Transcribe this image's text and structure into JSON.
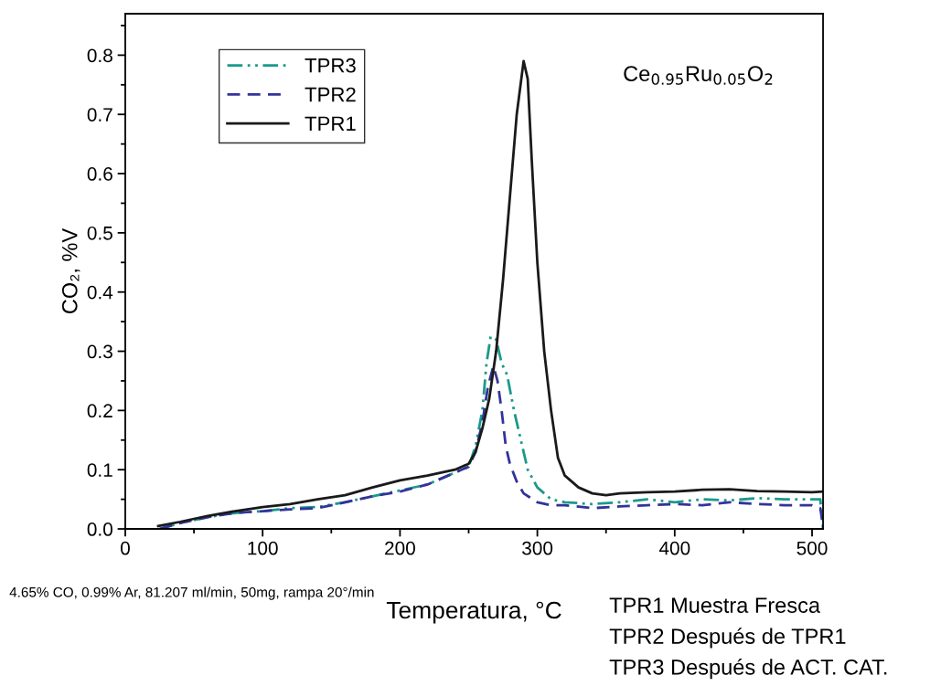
{
  "chart_data": {
    "type": "line",
    "xlabel": "Temperatura, °C",
    "ylabel": "CO₂, %V",
    "annotations": [
      "Ce$_{0.95}$Ru$_{0.05}$O$_{2}$",
      "4.65% CO, 0.99% Ar, 81.207 ml/min, 50mg, rampa 20°/min",
      "TPR1 Muestra Fresca",
      "TPR2 Después de TPR1",
      "TPR3 Después de ACT. CAT."
    ],
    "xlim": [
      0,
      508
    ],
    "xticks": [
      0,
      100,
      200,
      300,
      400,
      500
    ],
    "ylim": [
      0,
      0.87
    ],
    "yticks": [
      {
        "value": 0,
        "label": "0.0"
      },
      0.1,
      0.2,
      0.3,
      0.4,
      0.5,
      0.6,
      0.7,
      0.8
    ],
    "grid": false,
    "legend": "top left",
    "marker": "none",
    "series": [
      {
        "name": "TPR3",
        "color": "#1a9a8a",
        "line_style": "dashdot",
        "x": [
          25,
          40,
          60,
          80,
          100,
          120,
          140,
          160,
          180,
          200,
          220,
          240,
          250,
          255,
          260,
          263,
          266,
          270,
          274,
          278,
          283,
          288,
          293,
          300,
          310,
          320,
          340,
          360,
          380,
          400,
          420,
          440,
          460,
          480,
          500,
          506,
          508
        ],
        "values": [
          0.0,
          0.01,
          0.02,
          0.027,
          0.03,
          0.035,
          0.037,
          0.045,
          0.055,
          0.065,
          0.075,
          0.095,
          0.105,
          0.14,
          0.2,
          0.28,
          0.325,
          0.32,
          0.28,
          0.26,
          0.2,
          0.15,
          0.1,
          0.07,
          0.05,
          0.045,
          0.042,
          0.045,
          0.05,
          0.045,
          0.05,
          0.048,
          0.052,
          0.05,
          0.05,
          0.05,
          0.0
        ]
      },
      {
        "name": "TPR2",
        "color": "#33339a",
        "line_style": "dashed",
        "x": [
          25,
          40,
          60,
          80,
          100,
          120,
          140,
          160,
          180,
          200,
          220,
          240,
          250,
          255,
          260,
          264,
          268,
          271,
          274,
          277,
          280,
          285,
          290,
          300,
          310,
          320,
          340,
          360,
          380,
          400,
          420,
          440,
          460,
          480,
          500,
          506,
          508
        ],
        "values": [
          0.0,
          0.01,
          0.02,
          0.027,
          0.03,
          0.033,
          0.035,
          0.045,
          0.055,
          0.063,
          0.075,
          0.095,
          0.105,
          0.13,
          0.18,
          0.24,
          0.275,
          0.25,
          0.2,
          0.14,
          0.11,
          0.08,
          0.06,
          0.045,
          0.04,
          0.04,
          0.035,
          0.038,
          0.04,
          0.042,
          0.04,
          0.045,
          0.042,
          0.04,
          0.04,
          0.035,
          0.005
        ]
      },
      {
        "name": "TPR1",
        "color": "#1a1a1a",
        "line_style": "solid",
        "x": [
          24,
          40,
          60,
          80,
          100,
          120,
          140,
          160,
          180,
          200,
          220,
          240,
          250,
          255,
          260,
          265,
          270,
          275,
          280,
          285,
          290,
          293,
          296,
          300,
          305,
          310,
          315,
          320,
          330,
          340,
          350,
          360,
          380,
          400,
          420,
          440,
          460,
          480,
          500,
          508
        ],
        "values": [
          0.005,
          0.012,
          0.022,
          0.03,
          0.037,
          0.042,
          0.05,
          0.057,
          0.07,
          0.082,
          0.09,
          0.1,
          0.11,
          0.13,
          0.17,
          0.22,
          0.3,
          0.42,
          0.56,
          0.7,
          0.79,
          0.76,
          0.62,
          0.45,
          0.3,
          0.2,
          0.12,
          0.09,
          0.07,
          0.06,
          0.057,
          0.06,
          0.062,
          0.063,
          0.066,
          0.067,
          0.064,
          0.063,
          0.062,
          0.063
        ]
      }
    ]
  }
}
